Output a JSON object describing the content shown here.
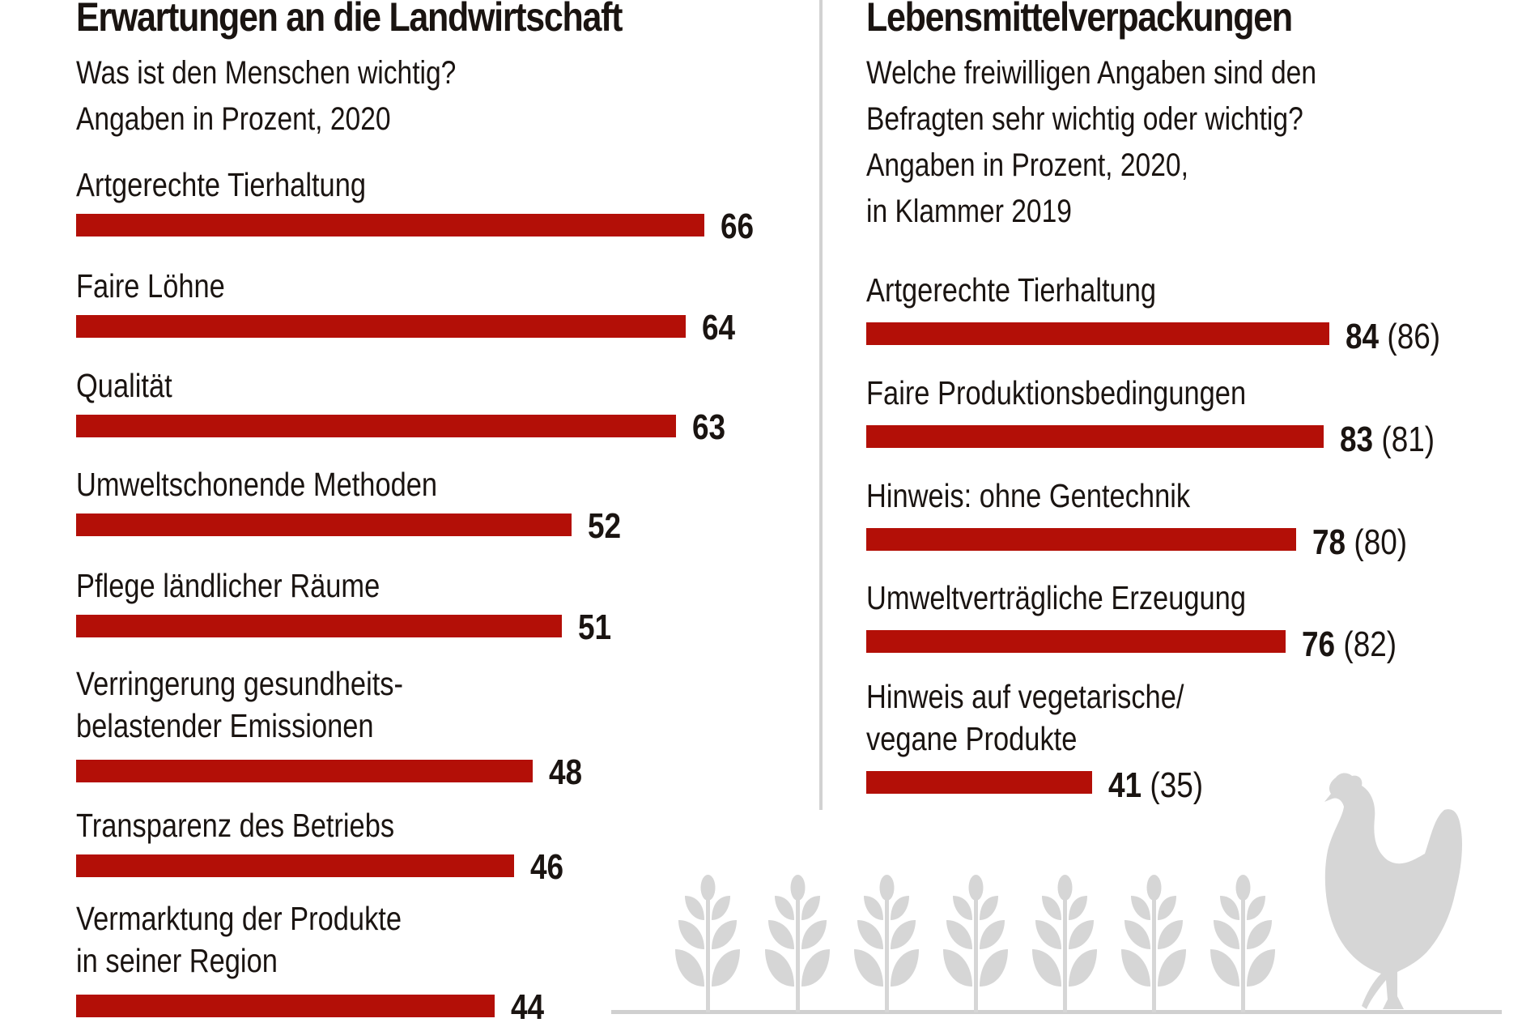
{
  "chart_data": [
    {
      "type": "bar",
      "orientation": "horizontal",
      "title": "Erwartungen an die Landwirtschaft",
      "subtitle": [
        "Was ist den Menschen wichtig?",
        "Angaben in Prozent, 2020"
      ],
      "unit": "Prozent",
      "categories": [
        [
          "Artgerechte Tierhaltung"
        ],
        [
          "Faire Löhne"
        ],
        [
          "Qualität"
        ],
        [
          "Umweltschonende Methoden"
        ],
        [
          "Pflege ländlicher Räume"
        ],
        [
          "Verringerung gesundheits-",
          "belastender Emissionen"
        ],
        [
          "Transparenz des Betriebs"
        ],
        [
          "Vermarktung der Produkte",
          "in seiner Region"
        ]
      ],
      "series": [
        {
          "name": "2020",
          "values": [
            66,
            64,
            63,
            52,
            51,
            48,
            46,
            44
          ]
        }
      ],
      "xlim": [
        0,
        100
      ],
      "grid": false,
      "legend": "none",
      "bar_color": "#b30f07"
    },
    {
      "type": "bar",
      "orientation": "horizontal",
      "title": "Lebensmittelverpackungen",
      "subtitle": [
        "Welche freiwilligen Angaben sind den",
        "Befragten sehr wichtig oder wichtig?",
        "Angaben in Prozent, 2020,",
        "in Klammer 2019"
      ],
      "unit": "Prozent",
      "categories": [
        [
          "Artgerechte Tierhaltung"
        ],
        [
          "Faire Produktionsbedingungen"
        ],
        [
          "Hinweis: ohne Gentechnik"
        ],
        [
          "Umweltverträgliche Erzeugung"
        ],
        [
          "Hinweis auf vegetarische/",
          "vegane Produkte"
        ]
      ],
      "series": [
        {
          "name": "2020",
          "values": [
            84,
            83,
            78,
            76,
            41
          ]
        },
        {
          "name": "2019",
          "values": [
            86,
            81,
            80,
            82,
            35
          ]
        }
      ],
      "xlim": [
        0,
        100
      ],
      "grid": false,
      "legend": "none",
      "bar_color": "#b30f07"
    }
  ],
  "decoration": {
    "icons": [
      "wheat-icon",
      "wheat-icon",
      "wheat-icon",
      "wheat-icon",
      "wheat-icon",
      "wheat-icon",
      "wheat-icon",
      "chicken-icon"
    ],
    "color": "#d6d6d6"
  }
}
